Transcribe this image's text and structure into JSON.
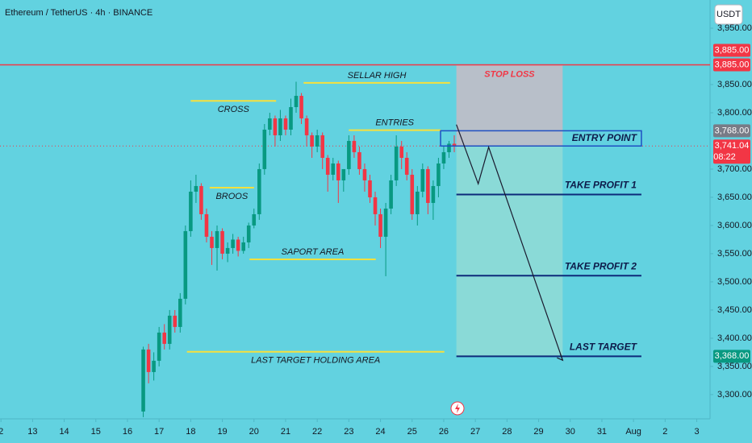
{
  "chart_data": {
    "type": "candlestick",
    "title": "Ethereum / TetherUS · 4h · BINANCE",
    "currency_button": "USDT",
    "up_color": "#089981",
    "down_color": "#f23645",
    "x": [
      16.5,
      16.667,
      16.833,
      17,
      17.167,
      17.333,
      17.5,
      17.667,
      17.833,
      18,
      18.167,
      18.333,
      18.5,
      18.667,
      18.833,
      19,
      19.167,
      19.333,
      19.5,
      19.667,
      19.833,
      20,
      20.167,
      20.333,
      20.5,
      20.667,
      20.833,
      21,
      21.167,
      21.333,
      21.5,
      21.667,
      21.833,
      22,
      22.167,
      22.333,
      22.5,
      22.667,
      22.833,
      23,
      23.167,
      23.333,
      23.5,
      23.667,
      23.833,
      24,
      24.167,
      24.333,
      24.5,
      24.667,
      24.833,
      25,
      25.167,
      25.333,
      25.5,
      25.667,
      25.833,
      26,
      26.167,
      26.333
    ],
    "open": [
      3270,
      3380,
      3340,
      3360,
      3410,
      3390,
      3440,
      3420,
      3470,
      3590,
      3660,
      3670,
      3620,
      3580,
      3560,
      3590,
      3550,
      3560,
      3575,
      3555,
      3570,
      3600,
      3620,
      3700,
      3770,
      3790,
      3760,
      3790,
      3770,
      3810,
      3830,
      3790,
      3760,
      3740,
      3760,
      3720,
      3690,
      3710,
      3680,
      3700,
      3750,
      3730,
      3700,
      3680,
      3650,
      3620,
      3580,
      3630,
      3680,
      3740,
      3720,
      3690,
      3620,
      3660,
      3700,
      3640,
      3670,
      3710,
      3730,
      3745
    ],
    "high": [
      3385,
      3390,
      3375,
      3420,
      3425,
      3450,
      3450,
      3480,
      3600,
      3680,
      3690,
      3675,
      3630,
      3590,
      3600,
      3595,
      3570,
      3585,
      3580,
      3580,
      3605,
      3630,
      3710,
      3780,
      3800,
      3795,
      3805,
      3795,
      3825,
      3855,
      3835,
      3795,
      3765,
      3770,
      3765,
      3725,
      3720,
      3715,
      3700,
      3760,
      3760,
      3740,
      3710,
      3690,
      3660,
      3630,
      3640,
      3690,
      3760,
      3750,
      3730,
      3700,
      3670,
      3710,
      3705,
      3680,
      3720,
      3740,
      3750,
      3760
    ],
    "low": [
      3260,
      3320,
      3325,
      3350,
      3380,
      3380,
      3410,
      3410,
      3460,
      3580,
      3640,
      3610,
      3570,
      3530,
      3520,
      3540,
      3535,
      3550,
      3545,
      3550,
      3560,
      3595,
      3610,
      3690,
      3760,
      3740,
      3750,
      3760,
      3760,
      3800,
      3780,
      3740,
      3720,
      3730,
      3700,
      3660,
      3680,
      3640,
      3660,
      3690,
      3720,
      3690,
      3660,
      3640,
      3600,
      3560,
      3510,
      3620,
      3670,
      3700,
      3680,
      3610,
      3600,
      3650,
      3620,
      3610,
      3650,
      3700,
      3720,
      3730
    ],
    "close": [
      3380,
      3340,
      3360,
      3410,
      3390,
      3440,
      3420,
      3470,
      3590,
      3660,
      3670,
      3620,
      3580,
      3560,
      3590,
      3550,
      3560,
      3575,
      3555,
      3570,
      3600,
      3620,
      3700,
      3770,
      3790,
      3760,
      3790,
      3770,
      3810,
      3830,
      3790,
      3760,
      3740,
      3760,
      3720,
      3690,
      3710,
      3680,
      3700,
      3750,
      3730,
      3700,
      3680,
      3650,
      3620,
      3580,
      3630,
      3680,
      3740,
      3720,
      3690,
      3620,
      3660,
      3700,
      3640,
      3670,
      3710,
      3730,
      3745,
      3741.04
    ],
    "xlim": [
      11.97,
      34.42
    ],
    "xticks": [
      {
        "value": 12,
        "label": "2"
      },
      13,
      14,
      15,
      16,
      17,
      18,
      19,
      20,
      21,
      22,
      23,
      24,
      25,
      26,
      27,
      28,
      29,
      30,
      31,
      {
        "value": 32,
        "label": "Aug"
      },
      {
        "value": 33,
        "label": "2"
      },
      {
        "value": 34,
        "label": "3"
      }
    ],
    "ylim": [
      3257,
      4000
    ],
    "yticks": [
      {
        "value": 3950,
        "label": "3,950.00"
      },
      {
        "value": 3850,
        "label": "3,850.00"
      },
      {
        "value": 3800,
        "label": "3,800.00"
      },
      {
        "value": 3700,
        "label": "3,700.00"
      },
      {
        "value": 3650,
        "label": "3,650.00"
      },
      {
        "value": 3600,
        "label": "3,600.00"
      },
      {
        "value": 3550,
        "label": "3,550.00"
      },
      {
        "value": 3500,
        "label": "3,500.00"
      },
      {
        "value": 3450,
        "label": "3,450.00"
      },
      {
        "value": 3400,
        "label": "3,400.00"
      },
      {
        "value": 3350,
        "label": "3,350.00"
      },
      {
        "value": 3300,
        "label": "3,300.00"
      }
    ],
    "levels": [
      {
        "label": "CROSS",
        "value": 3821,
        "from": 18,
        "to": 20.7,
        "label_side": "below"
      },
      {
        "label": "BROOS",
        "value": 3667,
        "from": 18.6,
        "to": 20,
        "label_side": "below"
      },
      {
        "label": "SELLAR HIGH",
        "value": 3853,
        "from": 21.57,
        "to": 26.2,
        "label_side": "above"
      },
      {
        "label": "ENTRIES",
        "value": 3769,
        "from": 23,
        "to": 25.9,
        "label_side": "above"
      },
      {
        "label": "SAPORT AREA",
        "value": 3540,
        "from": 19.86,
        "to": 23.85,
        "label_side": "above"
      },
      {
        "label": "LAST TARGET HOLDING AREA",
        "value": 3376,
        "from": 17.88,
        "to": 26.02,
        "label_side": "below"
      }
    ],
    "trade": {
      "box_x": [
        26.4,
        29.76
      ],
      "line_end": 32.25,
      "stop_loss": {
        "label": "STOP LOSS",
        "value": 3885
      },
      "entry": {
        "label": "ENTRY POINT",
        "value": 3741,
        "top": 3768,
        "from": 25.9
      },
      "targets": [
        {
          "label": "TAKE PROFIT 1",
          "value": 3655
        },
        {
          "label": "TAKE PROFIT 2",
          "value": 3511
        },
        {
          "label": "LAST TARGET",
          "value": 3368
        }
      ]
    },
    "stop_line": 3885,
    "projection": {
      "x": [
        26.4,
        27.09,
        27.42,
        29.76
      ],
      "y": [
        3779,
        3674,
        3739,
        3361
      ]
    },
    "price_tags": [
      {
        "value": 3885,
        "label": "3,885.00",
        "color": "#f23645"
      },
      {
        "value": 3885,
        "label": "3,885.00",
        "color": "#f23645"
      },
      {
        "value": 3768,
        "label": "3,768.00",
        "color": "#787b86"
      },
      {
        "value": 3741.04,
        "label": "3,741.04",
        "sub": "08:22",
        "color": "#f23645"
      },
      {
        "value": 3368,
        "label": "3,368.00",
        "color": "#089981"
      }
    ]
  }
}
